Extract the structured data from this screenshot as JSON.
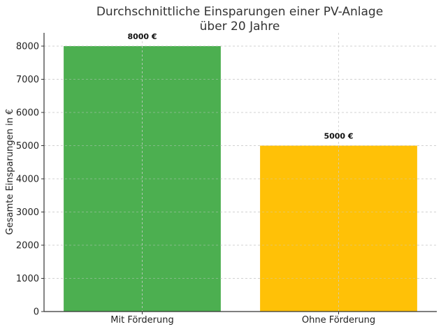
{
  "chart_data": {
    "type": "bar",
    "title": [
      "Durchschnittliche Einsparungen einer PV-Anlage",
      "über 20 Jahre"
    ],
    "xlabel": "",
    "ylabel": "Gesamte Einsparungen in €",
    "categories": [
      "Mit Förderung",
      "Ohne Förderung"
    ],
    "values": [
      8000,
      5000
    ],
    "data_labels": [
      "8000 €",
      "5000 €"
    ],
    "colors": [
      "#4caf50",
      "#ffc107"
    ],
    "ylim": [
      0,
      8400
    ],
    "yticks": [
      0,
      1000,
      2000,
      3000,
      4000,
      5000,
      6000,
      7000,
      8000
    ],
    "grid": true
  }
}
